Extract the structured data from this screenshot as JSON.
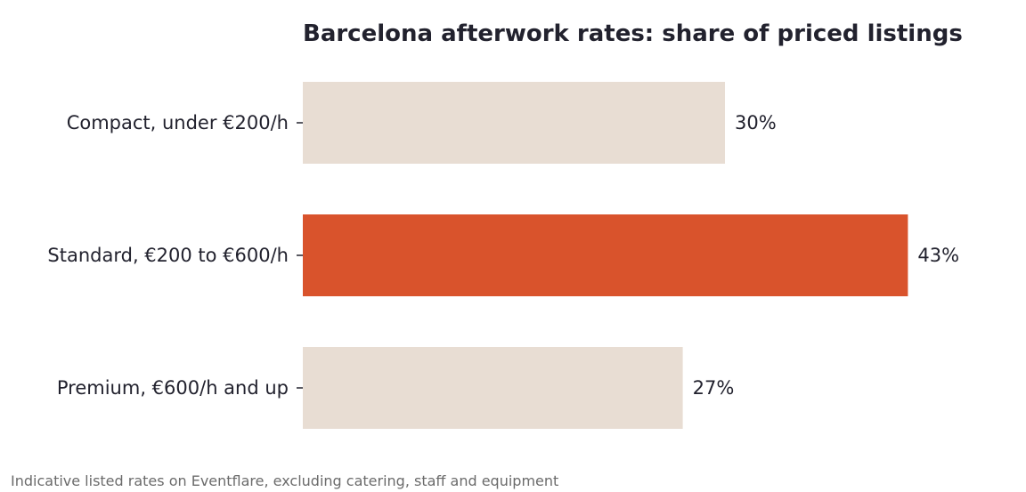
{
  "chart_data": {
    "type": "bar",
    "orientation": "horizontal",
    "title": "Barcelona afterwork rates: share of priced listings",
    "categories": [
      "Compact, under €200/h",
      "Standard, €200 to €600/h",
      "Premium, €600/h and up"
    ],
    "values": [
      30,
      43,
      27
    ],
    "value_labels": [
      "30%",
      "43%",
      "27%"
    ],
    "xlim": [
      0,
      45
    ],
    "grid": false,
    "colors": {
      "default": "#e8ddd3",
      "highlight": "#d9532c"
    },
    "highlight_index": 1
  },
  "footnote": "Indicative listed rates on Eventflare, excluding catering, staff and equipment"
}
